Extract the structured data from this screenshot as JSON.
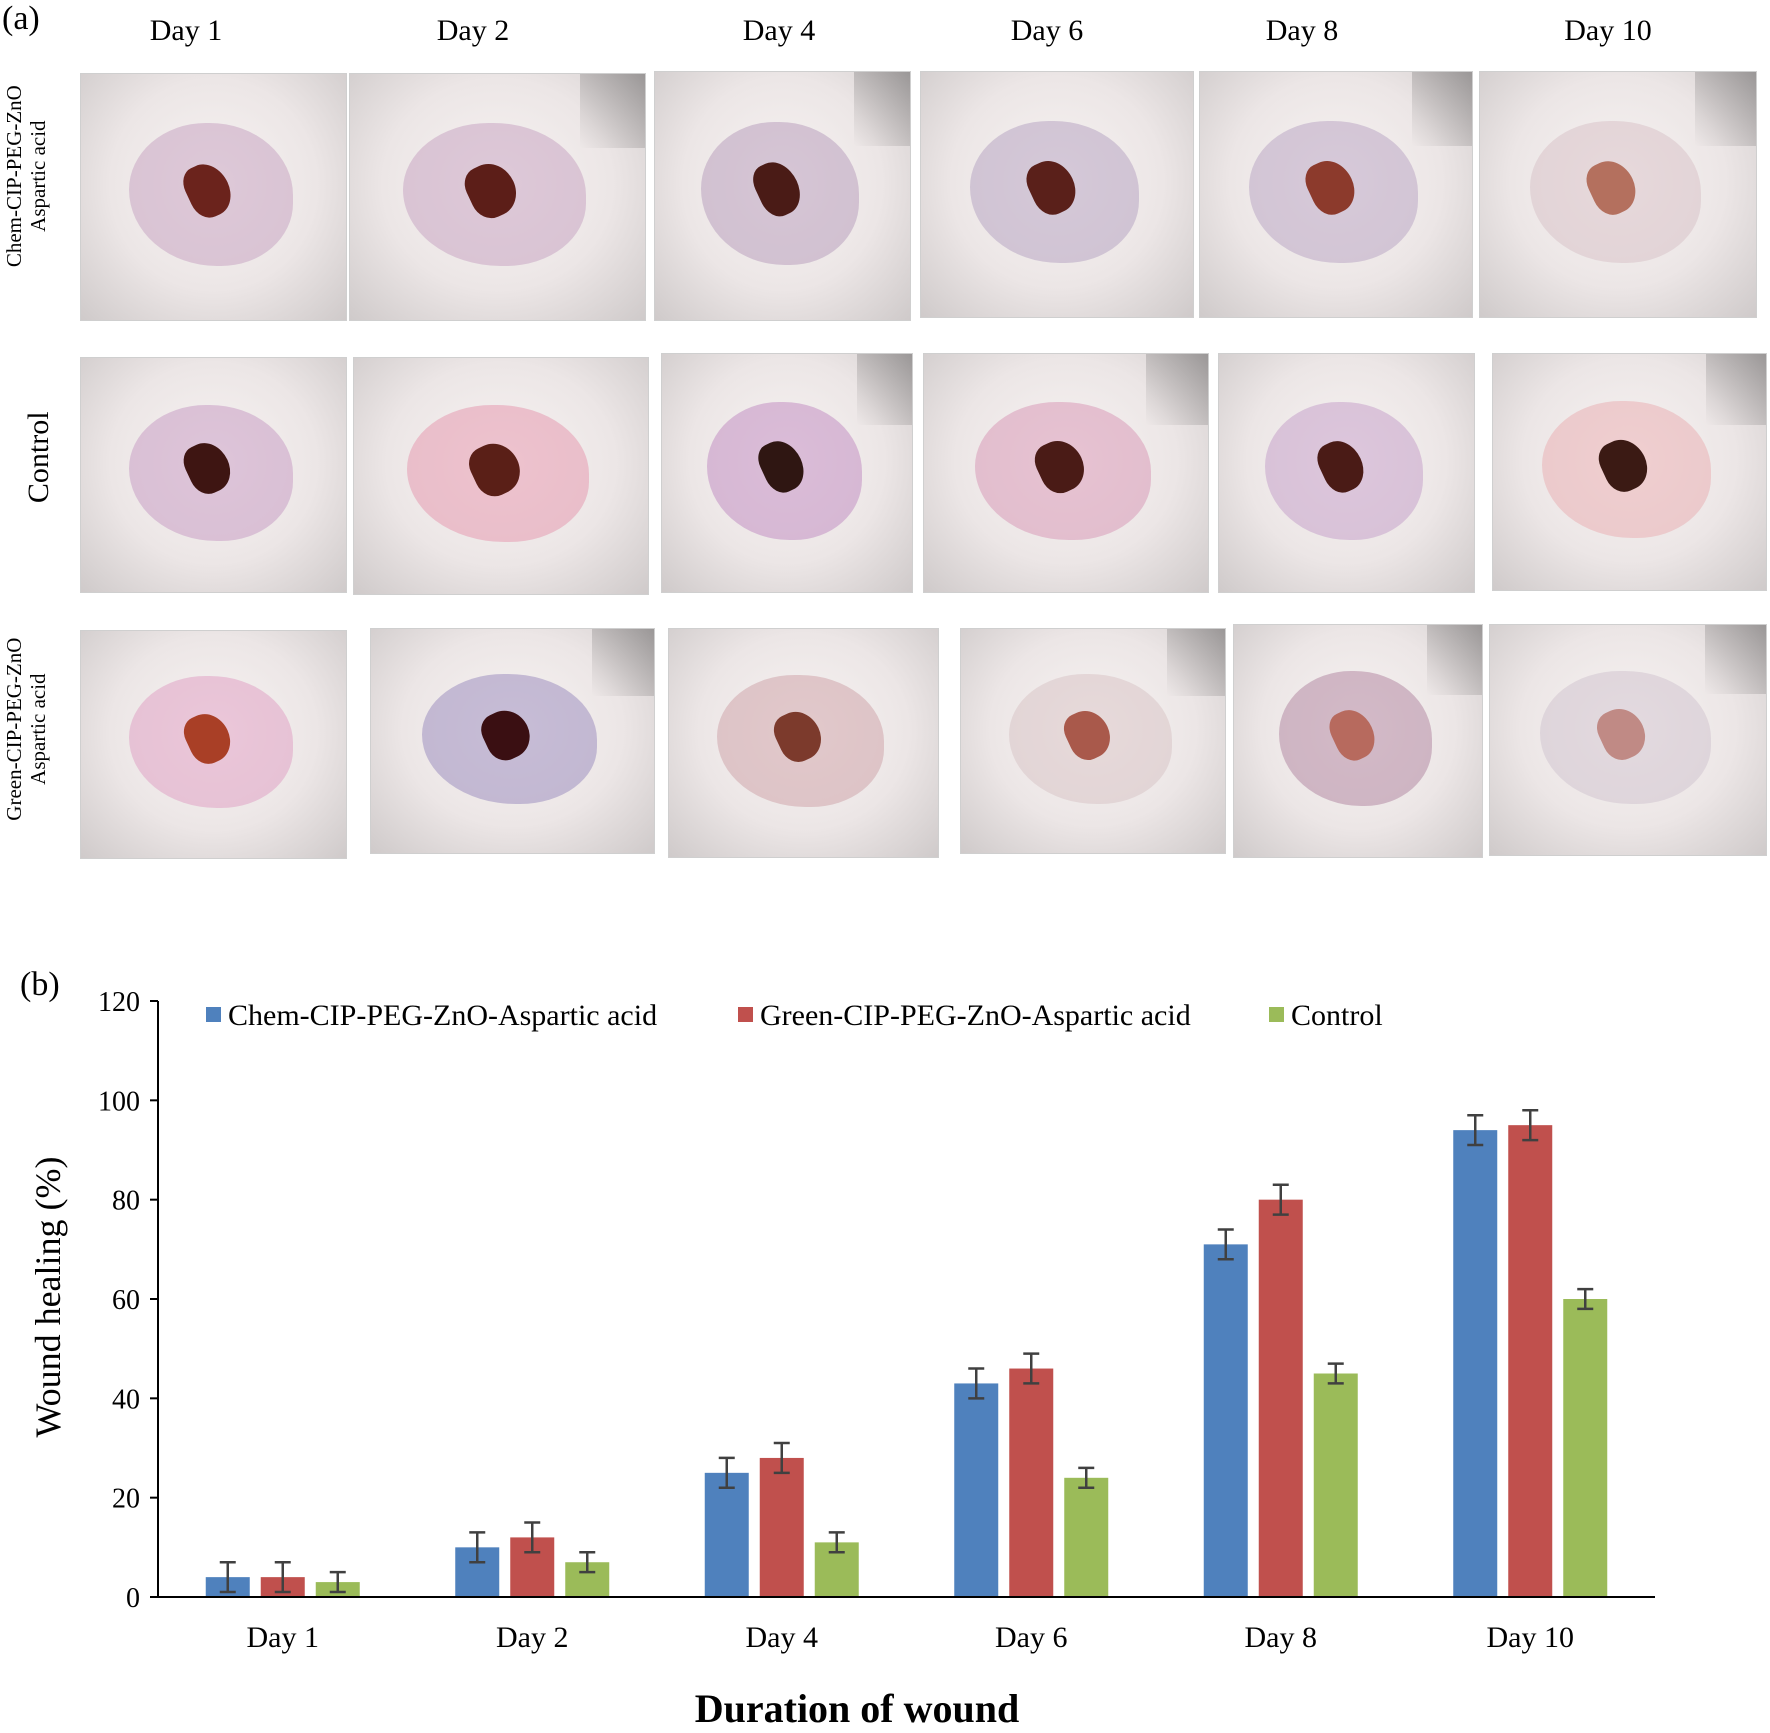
{
  "panel_a": {
    "label": "(a)",
    "day_headers": [
      "Day 1",
      "Day 2",
      "Day 4",
      "Day 6",
      "Day 8",
      "Day 10"
    ],
    "rows": [
      {
        "label_line1": "Chem-CIP-PEG-ZnO",
        "label_line2": "Aspartic acid"
      },
      {
        "label_line1": "Control",
        "label_line2": ""
      },
      {
        "label_line1": "Green-CIP-PEG-ZnO",
        "label_line2": "Aspartic acid"
      }
    ]
  },
  "panel_b": {
    "label": "(b)"
  },
  "chart_data": {
    "type": "bar",
    "categories": [
      "Day 1",
      "Day 2",
      "Day 4",
      "Day 6",
      "Day 8",
      "Day 10"
    ],
    "series": [
      {
        "name": "Chem-CIP-PEG-ZnO-Aspartic acid",
        "color": "#4f81bd",
        "values": [
          4,
          10,
          25,
          43,
          71,
          94
        ],
        "errors": [
          3,
          3,
          3,
          3,
          3,
          3
        ]
      },
      {
        "name": "Green-CIP-PEG-ZnO-Aspartic acid",
        "color": "#c0504d",
        "values": [
          4,
          12,
          28,
          46,
          80,
          95
        ],
        "errors": [
          3,
          3,
          3,
          3,
          3,
          3
        ]
      },
      {
        "name": "Control",
        "color": "#9bbb59",
        "values": [
          3,
          7,
          11,
          24,
          45,
          60
        ],
        "errors": [
          2,
          2,
          2,
          2,
          2,
          2
        ]
      }
    ],
    "ylabel": "Wound healing (%)",
    "xlabel": "Duration of wound",
    "ylim": [
      0,
      120
    ],
    "yticks": [
      0,
      20,
      40,
      60,
      80,
      100,
      120
    ],
    "grid": false,
    "legend_position": "top"
  }
}
